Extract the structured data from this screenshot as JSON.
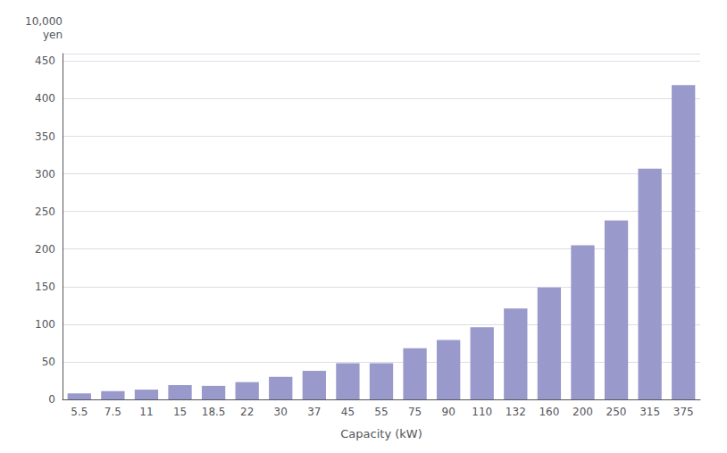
{
  "chart_data": {
    "type": "bar",
    "categories": [
      "5.5",
      "7.5",
      "11",
      "15",
      "18.5",
      "22",
      "30",
      "37",
      "45",
      "55",
      "75",
      "90",
      "110",
      "132",
      "160",
      "200",
      "250",
      "315",
      "375"
    ],
    "values": [
      8,
      11,
      13,
      19,
      18,
      23,
      30,
      38,
      48,
      48,
      68,
      79,
      96,
      121,
      149,
      205,
      238,
      307,
      418
    ],
    "color": "#9999CC",
    "xlabel": "Capacity (kW)",
    "ylabel": "10,000\nyen",
    "ylim": [
      0,
      460
    ],
    "yticks": [
      0,
      50,
      100,
      150,
      200,
      250,
      300,
      350,
      400,
      450
    ],
    "grid": true
  }
}
